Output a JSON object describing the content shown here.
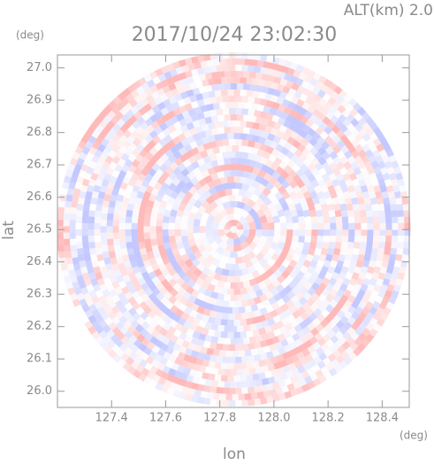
{
  "chart_data": {
    "type": "radar-ppi",
    "title": "2017/10/24 23:02:30",
    "subtitle": "ALT(km) 2.0",
    "x_label": "lon",
    "y_label": "lat",
    "x_unit": "(deg)",
    "y_unit": "(deg)",
    "xlim": [
      127.2,
      128.5
    ],
    "ylim": [
      25.95,
      27.04
    ],
    "xticks": [
      127.4,
      127.6,
      127.8,
      {
        "value": 128.0,
        "label": "128.0"
      },
      128.2,
      128.4
    ],
    "yticks": [
      {
        "value": 26.0,
        "label": "26.0"
      },
      26.1,
      26.2,
      26.3,
      26.4,
      26.5,
      26.6,
      26.7,
      26.8,
      26.9,
      {
        "value": 27.0,
        "label": "27.0"
      }
    ]
  }
}
